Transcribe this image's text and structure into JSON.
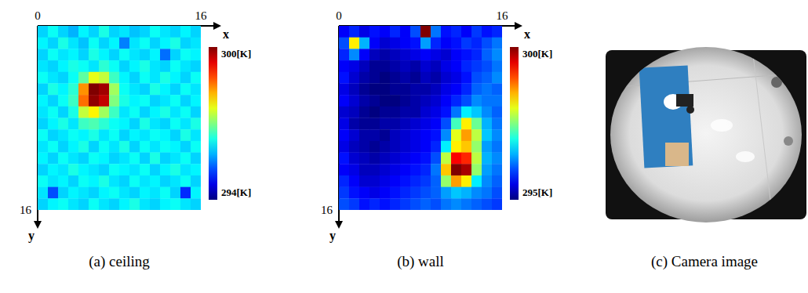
{
  "chart_data": [
    {
      "type": "heatmap",
      "title": "(a) ceiling",
      "xlabel": "x",
      "ylabel": "y",
      "xlim": [
        0,
        16
      ],
      "ylim": [
        0,
        16
      ],
      "xticks": [
        0,
        16
      ],
      "yticks": [
        16
      ],
      "colorbar_range": [
        294,
        300
      ],
      "colorbar_ticks": [
        {
          "value": 300,
          "label": "300[K]"
        },
        {
          "value": 294,
          "label": "294[K]"
        }
      ],
      "cells": [
        [
          296,
          296.3,
          296,
          295.8,
          296.2,
          296,
          296.4,
          296,
          296.1,
          295.9,
          296,
          296.3,
          296.1,
          296,
          296.2,
          296
        ],
        [
          296.2,
          296,
          296.4,
          296.1,
          295.9,
          296.3,
          296,
          296.2,
          295.5,
          296.1,
          296.3,
          296,
          296.2,
          296.4,
          296,
          296.1
        ],
        [
          296,
          296.3,
          296.1,
          296.2,
          296,
          296.4,
          296.2,
          296,
          296.3,
          296.1,
          296,
          296.2,
          295.4,
          296,
          296.3,
          296.2
        ],
        [
          296.1,
          296,
          296.2,
          296.4,
          296.3,
          296.1,
          296.5,
          296.3,
          296,
          296.2,
          296.4,
          296.1,
          296,
          296.3,
          296.1,
          296
        ],
        [
          296.3,
          296.1,
          296,
          296.3,
          296.8,
          297.6,
          297.4,
          296.6,
          296.2,
          296,
          296.3,
          296.1,
          296.4,
          296.2,
          296,
          296.3
        ],
        [
          296,
          296.4,
          296.2,
          296.5,
          298.4,
          300,
          299.8,
          297.2,
          296.3,
          296.1,
          296,
          296.4,
          296.2,
          296,
          296.3,
          296.1
        ],
        [
          296.2,
          296,
          296.3,
          296.6,
          298.6,
          299.9,
          299.6,
          297,
          296.4,
          296.2,
          296.3,
          296,
          296.1,
          296.3,
          296,
          296.2
        ],
        [
          296.1,
          296.3,
          296,
          296.4,
          297.4,
          297.8,
          297.2,
          296.6,
          296.1,
          296.3,
          296,
          296.2,
          296.4,
          296.1,
          296.3,
          296
        ],
        [
          296,
          296.2,
          296.4,
          296.1,
          296.6,
          296.7,
          296.5,
          296.3,
          296.2,
          296,
          296.4,
          296.1,
          296,
          296.3,
          296.1,
          296.4
        ],
        [
          296.3,
          296,
          296.1,
          296.3,
          296.2,
          296.4,
          296.1,
          296.3,
          296,
          296.2,
          296.1,
          296.3,
          296.2,
          296,
          296.4,
          296.1
        ],
        [
          296.1,
          296.3,
          296,
          296.2,
          296.4,
          296,
          296.3,
          296.1,
          296.4,
          296,
          296.3,
          296.1,
          296.3,
          296.2,
          296,
          296.3
        ],
        [
          296.2,
          296,
          296.3,
          296.1,
          296,
          296.3,
          296.2,
          296,
          296.1,
          296.3,
          296,
          296.4,
          296,
          296.1,
          296.3,
          296
        ],
        [
          296,
          296.2,
          296.1,
          296.4,
          296.2,
          296.1,
          296,
          296.3,
          296.2,
          296.1,
          296.3,
          296,
          296.2,
          296.4,
          296.1,
          296.2
        ],
        [
          296.3,
          296.1,
          296.2,
          296,
          296.3,
          296.2,
          296.4,
          296.1,
          296,
          296.3,
          296.1,
          296.2,
          296,
          296.1,
          296.3,
          296
        ],
        [
          296.1,
          295.2,
          296,
          296.2,
          296.1,
          296,
          296.2,
          296.3,
          296.1,
          296,
          296.2,
          296.1,
          296.3,
          296,
          295,
          296.2
        ],
        [
          296,
          296.2,
          296.3,
          296.1,
          296,
          296.3,
          296.1,
          296,
          296.2,
          296.4,
          296.1,
          296,
          296.2,
          296.3,
          296.1,
          296
        ]
      ]
    },
    {
      "type": "heatmap",
      "title": "(b) wall",
      "xlabel": "x",
      "ylabel": "y",
      "xlim": [
        0,
        16
      ],
      "ylim": [
        0,
        16
      ],
      "xticks": [
        0,
        16
      ],
      "yticks": [
        16
      ],
      "colorbar_range": [
        295,
        300
      ],
      "colorbar_ticks": [
        {
          "value": 300,
          "label": "300[K]"
        },
        {
          "value": 295,
          "label": "295[K]"
        }
      ],
      "cells": [
        [
          295.6,
          295.8,
          295.5,
          295.7,
          295.6,
          295.8,
          295.6,
          296,
          300,
          296.2,
          295.7,
          295.8,
          295.6,
          295.9,
          295.7,
          295.8
        ],
        [
          296,
          298.2,
          296.5,
          295.6,
          295.4,
          295.5,
          295.6,
          295.7,
          296.4,
          295.8,
          295.6,
          295.7,
          295.9,
          295.8,
          296,
          296.2
        ],
        [
          295.8,
          296.3,
          295.6,
          295.3,
          295.2,
          295.3,
          295.4,
          295.5,
          295.6,
          295.5,
          295.4,
          295.6,
          295.7,
          295.8,
          296.1,
          296.3
        ],
        [
          295.6,
          295.5,
          295.3,
          295.1,
          295.1,
          295.2,
          295.3,
          295.2,
          295.4,
          295.3,
          295.5,
          295.6,
          295.8,
          295.9,
          296,
          296.2
        ],
        [
          295.7,
          295.4,
          295.2,
          295.1,
          295,
          295.1,
          295.2,
          295.1,
          295.3,
          295.2,
          295.4,
          295.5,
          295.7,
          296,
          296.1,
          296.3
        ],
        [
          295.5,
          295.3,
          295.1,
          295,
          295,
          295.1,
          295.1,
          295.2,
          295.2,
          295.3,
          295.5,
          295.6,
          295.8,
          296.1,
          296.2,
          296.1
        ],
        [
          295.6,
          295.4,
          295.2,
          295.1,
          295,
          295,
          295.1,
          295.2,
          295.3,
          295.4,
          295.6,
          295.8,
          296,
          296.3,
          296.2,
          296.2
        ],
        [
          295.4,
          295.3,
          295.1,
          295,
          295.1,
          295.1,
          295.2,
          295.2,
          295.4,
          295.5,
          295.7,
          296.2,
          296.8,
          296.6,
          296.3,
          296.1
        ],
        [
          295.5,
          295.2,
          295.1,
          295.1,
          295.2,
          295.2,
          295.3,
          295.4,
          295.5,
          295.6,
          296,
          297.2,
          298.2,
          297.4,
          296.5,
          296.2
        ],
        [
          295.6,
          295.4,
          295.2,
          295.2,
          295.1,
          295.3,
          295.4,
          295.5,
          295.6,
          295.7,
          296.3,
          298,
          298.6,
          297.8,
          296.6,
          296.3
        ],
        [
          295.5,
          295.3,
          295.2,
          295.1,
          295.2,
          295.3,
          295.4,
          295.5,
          295.6,
          295.8,
          296.8,
          298.2,
          298.4,
          297.6,
          296.4,
          296.2
        ],
        [
          295.7,
          295.4,
          295.3,
          295.2,
          295.3,
          295.4,
          295.5,
          295.6,
          295.7,
          296,
          297.8,
          299.4,
          299.2,
          297.8,
          296.5,
          296.3
        ],
        [
          295.6,
          295.5,
          295.3,
          295.3,
          295.4,
          295.5,
          295.6,
          295.7,
          295.8,
          296.2,
          298.4,
          300,
          299.8,
          297.6,
          296.4,
          296.2
        ],
        [
          295.8,
          295.6,
          295.4,
          295.4,
          295.5,
          295.6,
          295.7,
          295.8,
          295.9,
          296.1,
          297.6,
          298.6,
          298.2,
          296.8,
          296.3,
          296.1
        ],
        [
          295.9,
          295.7,
          295.6,
          295.5,
          295.6,
          295.7,
          295.8,
          295.9,
          296,
          296.1,
          296.4,
          296.6,
          296.5,
          296.3,
          296.2,
          296
        ],
        [
          296,
          295.9,
          295.7,
          295.8,
          295.7,
          295.8,
          295.9,
          296,
          296.1,
          296,
          296.2,
          296.3,
          296.2,
          296.1,
          296,
          295.9
        ]
      ]
    }
  ],
  "image": {
    "caption": "(c) Camera image"
  }
}
